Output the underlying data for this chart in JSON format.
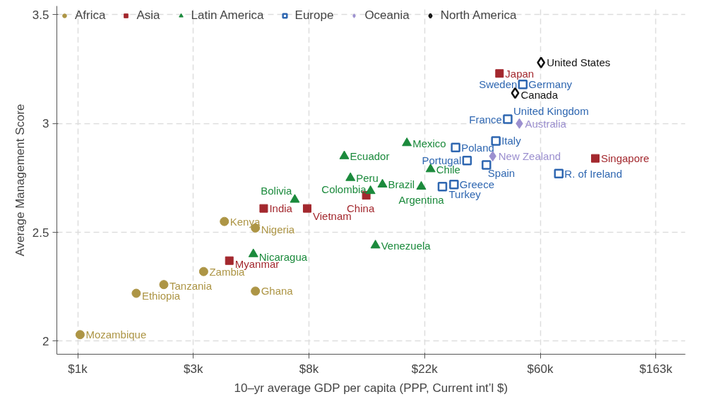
{
  "chart_data": {
    "type": "scatter",
    "xlabel": "10–yr average GDP per capita (PPP, Current int’l $)",
    "ylabel": "Average Management Score",
    "log": "x",
    "grid": true,
    "legend": "top",
    "xlim": [
      916,
      210000
    ],
    "ylim": [
      1.94,
      3.54
    ],
    "xticks": [
      {
        "value": 1097,
        "label": "$1k"
      },
      {
        "value": 2981,
        "label": "$3k"
      },
      {
        "value": 8103,
        "label": "$8k"
      },
      {
        "value": 22026,
        "label": "$22k"
      },
      {
        "value": 59874,
        "label": "$60k"
      },
      {
        "value": 162755,
        "label": "$163k"
      }
    ],
    "yticks": [
      2,
      2.5,
      3,
      3.5
    ],
    "series": [
      {
        "name": "Africa",
        "color": "#ad9545",
        "marker": "circle",
        "x": [
          1120,
          1820,
          2310,
          3260,
          3900,
          5100,
          5100
        ],
        "values": [
          2.03,
          2.22,
          2.26,
          2.32,
          2.55,
          2.52,
          2.23
        ]
      },
      {
        "name": "Asia",
        "color": "#a3282e",
        "marker": "square",
        "x": [
          4070,
          5480,
          7980,
          13300,
          42100,
          96400
        ],
        "values": [
          2.37,
          2.61,
          2.61,
          2.67,
          3.23,
          2.84
        ]
      },
      {
        "name": "Latin America",
        "color": "#1b8a3c",
        "marker": "triangle",
        "x": [
          7170,
          5010,
          11000,
          11600,
          13800,
          15300,
          18900,
          23200,
          21400,
          14400
        ],
        "values": [
          2.65,
          2.4,
          2.85,
          2.75,
          2.69,
          2.72,
          2.91,
          2.79,
          2.71,
          2.44
        ]
      },
      {
        "name": "Europe",
        "color": "#2f67b1",
        "marker": "square",
        "x": [
          28800,
          31800,
          25700,
          28400,
          37600,
          40800,
          45200,
          51500,
          70300
        ],
        "values": [
          2.89,
          2.83,
          2.71,
          2.72,
          2.81,
          2.92,
          3.02,
          3.18,
          2.77
        ]
      },
      {
        "name": "Oceania",
        "color": "#9b8fcf",
        "marker": "diamond",
        "x": [
          50000,
          39700
        ],
        "values": [
          3.0,
          2.85
        ]
      },
      {
        "name": "North America",
        "color": "#111111",
        "marker": "diamond",
        "x": [
          60300,
          48200
        ],
        "values": [
          3.28,
          3.14
        ]
      }
    ],
    "annotations": [
      {
        "text": "Mozambique",
        "x": 1120,
        "y": 2.03
      },
      {
        "text": "Ethiopia",
        "x": 1820,
        "y": 2.22
      },
      {
        "text": "Tanzania",
        "x": 2310,
        "y": 2.26
      },
      {
        "text": "Zambia",
        "x": 3260,
        "y": 2.32
      },
      {
        "text": "Kenya",
        "x": 3900,
        "y": 2.55
      },
      {
        "text": "Nigeria",
        "x": 5100,
        "y": 2.52
      },
      {
        "text": "Ghana",
        "x": 5100,
        "y": 2.23
      },
      {
        "text": "Myanmar",
        "x": 4070,
        "y": 2.37
      },
      {
        "text": "India",
        "x": 5480,
        "y": 2.61
      },
      {
        "text": "Vietnam",
        "x": 7980,
        "y": 2.61
      },
      {
        "text": "China",
        "x": 13300,
        "y": 2.67
      },
      {
        "text": "Japan",
        "x": 42100,
        "y": 3.23
      },
      {
        "text": "Singapore",
        "x": 96400,
        "y": 2.84
      },
      {
        "text": "Bolivia",
        "x": 7170,
        "y": 2.65
      },
      {
        "text": "Nicaragua",
        "x": 5010,
        "y": 2.4
      },
      {
        "text": "Ecuador",
        "x": 11000,
        "y": 2.85
      },
      {
        "text": "Peru",
        "x": 11600,
        "y": 2.75
      },
      {
        "text": "Colombia",
        "x": 13800,
        "y": 2.69
      },
      {
        "text": "Brazil",
        "x": 15300,
        "y": 2.72
      },
      {
        "text": "Mexico",
        "x": 18900,
        "y": 2.91
      },
      {
        "text": "Chile",
        "x": 23200,
        "y": 2.79
      },
      {
        "text": "Argentina",
        "x": 21400,
        "y": 2.71
      },
      {
        "text": "Venezuela",
        "x": 14400,
        "y": 2.44
      },
      {
        "text": "Poland",
        "x": 28800,
        "y": 2.89
      },
      {
        "text": "Portugal",
        "x": 31800,
        "y": 2.83
      },
      {
        "text": "Turkey",
        "x": 25700,
        "y": 2.71
      },
      {
        "text": "Greece",
        "x": 28400,
        "y": 2.72
      },
      {
        "text": "Spain",
        "x": 37600,
        "y": 2.81
      },
      {
        "text": "Italy",
        "x": 40800,
        "y": 2.92
      },
      {
        "text": "France",
        "x": 45200,
        "y": 3.02
      },
      {
        "text": "Sweden",
        "x": 51500,
        "y": 3.18
      },
      {
        "text": "Germany",
        "x": 51500,
        "y": 3.18
      },
      {
        "text": "United Kingdom",
        "x": 45200,
        "y": 3.02
      },
      {
        "text": "R. of Ireland",
        "x": 70300,
        "y": 2.77
      },
      {
        "text": "Australia",
        "x": 50000,
        "y": 3.0
      },
      {
        "text": "New Zealand",
        "x": 39700,
        "y": 2.85
      },
      {
        "text": "United States",
        "x": 60300,
        "y": 3.28
      },
      {
        "text": "Canada",
        "x": 48200,
        "y": 3.14
      }
    ]
  }
}
